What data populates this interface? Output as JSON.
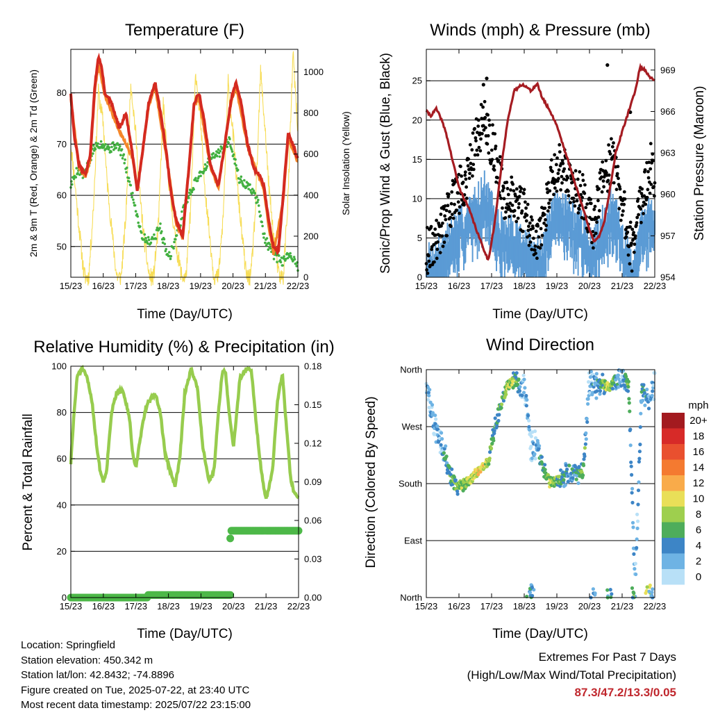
{
  "colors": {
    "temp_2m": "#d42a20",
    "temp_9m": "#f5872a",
    "dewpoint": "#42b040",
    "solar": "#f7dd58",
    "wind": "#5b9bd5",
    "gust": "#000000",
    "pressure": "#a51c22",
    "rh": "#97cc4e",
    "precip": "#4db848",
    "extremes": "#c0272d"
  },
  "speed_scale": {
    "title": "mph",
    "labels": [
      "20+",
      "18",
      "16",
      "14",
      "12",
      "10",
      "8",
      "6",
      "4",
      "2",
      "0"
    ],
    "colors": [
      "#a31a1f",
      "#d72a28",
      "#e9502f",
      "#f47a30",
      "#f9ab4a",
      "#e9df58",
      "#9ecf4e",
      "#4ead5b",
      "#3d85c6",
      "#6eb3e4",
      "#b8e0f7"
    ]
  },
  "footer": {
    "location": "Location: Springfield",
    "elevation": "Station elevation: 450.342 m",
    "latlon": "Station lat/lon: 42.8432; -74.8896",
    "created": "Figure created on Tue, 2025-07-22, at 23:40 UTC",
    "recent": "Most recent data timestamp: 2025/07/22 23:15:00"
  },
  "extremes": {
    "title": "Extremes For Past 7 Days",
    "subtitle": "(High/Low/Max Wind/Total Precipitation)",
    "values": "87.3/47.2/13.3/0.05"
  },
  "chart_data": [
    {
      "type": "line",
      "title": "Temperature (F)",
      "xlabel": "Time (Day/UTC)",
      "ylabel": "2m & 9m T (Red, Orange) & 2m Td (Green)",
      "ylabel_right": "Solar Insolation (Yellow)",
      "x_ticks": [
        "15/23",
        "16/23",
        "17/23",
        "18/23",
        "19/23",
        "20/23",
        "21/23",
        "22/23"
      ],
      "xlim": [
        0,
        7
      ],
      "ylim": [
        44,
        88.5
      ],
      "y_ticks": [
        50,
        60,
        70,
        80
      ],
      "ylim_right": [
        0,
        1110
      ],
      "y_ticks_right": [
        0,
        200,
        400,
        600,
        800,
        1000
      ],
      "grid": "y",
      "series": [
        {
          "key": "t2m",
          "axis": "left",
          "style": "thick",
          "x": [
            0,
            0.1,
            0.25,
            0.45,
            0.6,
            0.75,
            0.85,
            0.95,
            1.05,
            1.25,
            1.5,
            1.7,
            1.9,
            2.05,
            2.2,
            2.4,
            2.6,
            2.8,
            2.95,
            3.1,
            3.25,
            3.45,
            3.65,
            3.8,
            3.95,
            4.1,
            4.3,
            4.55,
            4.75,
            4.95,
            5.1,
            5.25,
            5.45,
            5.65,
            5.8,
            5.95,
            6.1,
            6.25,
            6.4,
            6.55,
            6.7,
            6.85,
            7
          ],
          "y": [
            80,
            72,
            66,
            64,
            68,
            82,
            87,
            85,
            80,
            78,
            73,
            76,
            68,
            61,
            68,
            78,
            82,
            75,
            68,
            60,
            55,
            52,
            66,
            78,
            80,
            75,
            66,
            62,
            70,
            79,
            82,
            78,
            70,
            65,
            64,
            62,
            55,
            50,
            49,
            60,
            72,
            70,
            67
          ]
        },
        {
          "key": "t9m",
          "axis": "left",
          "style": "thin",
          "x": [
            0,
            0.25,
            0.45,
            0.6,
            0.75,
            0.85,
            1.05,
            1.5,
            1.9,
            2.05,
            2.4,
            2.6,
            2.95,
            3.25,
            3.45,
            3.8,
            3.95,
            4.3,
            4.55,
            4.95,
            5.1,
            5.45,
            5.8,
            5.95,
            6.1,
            6.25,
            6.55,
            6.7,
            7
          ],
          "y": [
            79,
            65.5,
            63.5,
            67,
            81,
            85.5,
            79.5,
            72.5,
            67.5,
            61,
            77.5,
            81,
            67.5,
            54.5,
            51.5,
            77.5,
            79,
            65.5,
            61.5,
            78.5,
            81,
            69.5,
            63.5,
            61,
            54,
            48.5,
            59,
            71,
            66.5
          ]
        },
        {
          "key": "td",
          "axis": "left",
          "style": "dots",
          "x": [
            0,
            0.2,
            0.4,
            0.55,
            0.7,
            0.85,
            1.0,
            1.2,
            1.4,
            1.6,
            1.75,
            1.9,
            2.05,
            2.2,
            2.4,
            2.6,
            2.75,
            2.9,
            3.05,
            3.2,
            3.35,
            3.5,
            3.65,
            3.8,
            3.95,
            4.1,
            4.3,
            4.5,
            4.7,
            4.9,
            5.05,
            5.2,
            5.4,
            5.6,
            5.8,
            5.95,
            6.1,
            6.3,
            6.5,
            6.7,
            6.85,
            7
          ],
          "y": [
            62,
            65,
            64,
            66,
            69,
            70,
            70,
            69,
            70,
            68,
            64,
            60,
            56,
            52,
            51,
            52,
            54,
            50,
            48,
            51,
            54,
            58,
            60,
            62,
            64,
            65,
            67,
            68,
            69,
            71,
            67,
            63,
            62,
            61,
            58,
            52,
            50,
            48,
            47,
            48,
            48,
            46
          ]
        },
        {
          "key": "solar",
          "axis": "right",
          "style": "solar",
          "x": [
            0,
            0.1,
            0.25,
            0.4,
            0.45,
            0.55,
            0.7,
            0.85,
            1.0,
            1.1,
            1.25,
            1.4,
            1.45,
            1.55,
            1.7,
            1.85,
            2.0,
            2.1,
            2.25,
            2.4,
            2.45,
            2.55,
            2.7,
            2.85,
            3.0,
            3.1,
            3.25,
            3.4,
            3.45,
            3.55,
            3.7,
            3.85,
            4.0,
            4.1,
            4.25,
            4.4,
            4.45,
            4.55,
            4.7,
            4.85,
            5.0,
            5.1,
            5.25,
            5.4,
            5.45,
            5.55,
            5.7,
            5.85,
            6.0,
            6.1,
            6.25,
            6.4,
            6.45,
            6.55,
            6.7,
            6.85,
            7.0
          ],
          "y": [
            650,
            500,
            250,
            20,
            0,
            0,
            350,
            900,
            750,
            500,
            250,
            20,
            0,
            0,
            300,
            950,
            700,
            450,
            200,
            20,
            0,
            0,
            250,
            850,
            500,
            350,
            150,
            20,
            0,
            0,
            350,
            1000,
            750,
            500,
            250,
            20,
            0,
            0,
            300,
            950,
            700,
            500,
            250,
            20,
            0,
            0,
            350,
            1000,
            700,
            450,
            200,
            20,
            0,
            0,
            400,
            1090,
            700
          ]
        }
      ]
    },
    {
      "type": "scatter",
      "title": "Winds (mph) & Pressure (mb)",
      "xlabel": "Time (Day/UTC)",
      "ylabel": "Sonic/Prop Wind & Gust (Blue, Black)",
      "ylabel_right": "Station Pressure (Maroon)",
      "x_ticks": [
        "15/23",
        "16/23",
        "17/23",
        "18/23",
        "19/23",
        "20/23",
        "21/23",
        "22/23"
      ],
      "xlim": [
        0,
        7
      ],
      "ylim": [
        0,
        29
      ],
      "y_ticks": [
        0,
        5,
        10,
        15,
        20,
        25
      ],
      "ylim_right": [
        954,
        970.5
      ],
      "y_ticks_right": [
        954,
        957,
        960,
        963,
        966,
        969
      ],
      "grid": "y",
      "series": [
        {
          "key": "wind",
          "axis": "left",
          "style": "band",
          "x": [
            0,
            0.3,
            0.6,
            0.9,
            1.2,
            1.5,
            1.8,
            2.1,
            2.4,
            2.7,
            3.0,
            3.3,
            3.6,
            3.9,
            4.2,
            4.5,
            4.8,
            5.1,
            5.4,
            5.7,
            6.0,
            6.3,
            6.6,
            6.9,
            7
          ],
          "y": [
            1.5,
            2.5,
            4,
            6,
            7,
            9,
            11,
            7,
            5,
            5.5,
            4,
            2,
            4,
            8,
            9,
            7,
            6,
            3,
            7,
            9,
            5,
            1,
            6,
            8,
            6
          ]
        },
        {
          "key": "gust",
          "axis": "left",
          "style": "dots",
          "x": [
            0,
            0.3,
            0.6,
            0.9,
            1.2,
            1.5,
            1.8,
            2.1,
            2.4,
            2.7,
            3.0,
            3.3,
            3.6,
            3.9,
            4.2,
            4.5,
            4.8,
            5.1,
            5.4,
            5.7,
            6.0,
            6.3,
            6.6,
            6.9,
            7
          ],
          "y": [
            3,
            4.5,
            7,
            10,
            12,
            17,
            20,
            15,
            10,
            10,
            8,
            4,
            7,
            13,
            14,
            11,
            10,
            6,
            12,
            15,
            9,
            3,
            10,
            14,
            10
          ]
        },
        {
          "key": "gust_extremes",
          "axis": "left",
          "style": "dots",
          "x": [
            1.75,
            1.85,
            5.55,
            6.25
          ],
          "y": [
            24.5,
            25.3,
            27,
            21
          ]
        },
        {
          "key": "pressure",
          "axis": "right",
          "style": "thick",
          "x": [
            0,
            0.15,
            0.3,
            0.45,
            0.6,
            0.8,
            1.0,
            1.3,
            1.6,
            1.9,
            2.1,
            2.3,
            2.5,
            2.7,
            2.95,
            3.2,
            3.4,
            3.55,
            3.8,
            4.0,
            4.2,
            4.4,
            4.6,
            4.8,
            5.0,
            5.15,
            5.3,
            5.45,
            5.6,
            5.8,
            6.0,
            6.2,
            6.4,
            6.55,
            6.7,
            6.85,
            7
          ],
          "y": [
            966,
            965.7,
            966.2,
            965.5,
            964.5,
            962.5,
            960.5,
            959,
            957,
            955.2,
            958,
            962,
            965.5,
            967.5,
            968,
            967.5,
            968,
            967,
            966,
            965,
            963.5,
            962,
            960.5,
            959,
            957.5,
            956.5,
            957,
            958,
            960,
            963,
            964.5,
            966,
            967.5,
            969.2,
            969,
            968.5,
            968.3
          ]
        }
      ]
    },
    {
      "type": "line",
      "title": "Relative Humidity (%) & Precipitation (in)",
      "xlabel": "Time (Day/UTC)",
      "ylabel": "Percent & Total Rainfall",
      "x_ticks": [
        "15/23",
        "16/23",
        "17/23",
        "18/23",
        "19/23",
        "20/23",
        "21/23",
        "22/23"
      ],
      "xlim": [
        0,
        7
      ],
      "ylim": [
        0,
        100
      ],
      "y_ticks": [
        0,
        20,
        40,
        60,
        80,
        100
      ],
      "ylim_right": [
        0,
        0.18
      ],
      "y_ticks_right": [
        "0.00",
        "0.03",
        "0.06",
        "0.09",
        "0.12",
        "0.15",
        "0.18"
      ],
      "grid": "y",
      "series": [
        {
          "key": "rh",
          "axis": "left",
          "style": "thick",
          "x": [
            0,
            0.1,
            0.2,
            0.35,
            0.5,
            0.65,
            0.8,
            0.9,
            1.0,
            1.1,
            1.25,
            1.4,
            1.6,
            1.8,
            1.9,
            2.0,
            2.15,
            2.3,
            2.4,
            2.6,
            2.75,
            2.9,
            3.05,
            3.2,
            3.35,
            3.5,
            3.7,
            3.9,
            4.05,
            4.25,
            4.4,
            4.55,
            4.65,
            4.75,
            4.85,
            5.0,
            5.2,
            5.4,
            5.55,
            5.7,
            5.85,
            6.0,
            6.2,
            6.35,
            6.5,
            6.65,
            6.75,
            6.85,
            7
          ],
          "y": [
            58,
            80,
            96,
            99,
            95,
            85,
            65,
            55,
            50,
            55,
            80,
            88,
            90,
            78,
            62,
            56,
            70,
            82,
            85,
            88,
            80,
            62,
            55,
            48,
            60,
            88,
            99,
            90,
            66,
            50,
            55,
            82,
            97,
            98,
            82,
            65,
            95,
            99,
            98,
            75,
            55,
            42,
            55,
            85,
            97,
            70,
            52,
            46,
            43
          ]
        },
        {
          "key": "precip",
          "axis": "right",
          "style": "dots",
          "x": [
            0,
            0.5,
            1.0,
            1.5,
            2.0,
            2.3,
            2.35,
            2.6,
            3.0,
            3.4,
            3.8,
            4.2,
            4.55,
            4.9,
            4.92,
            5.2,
            5.6,
            6.0,
            6.4,
            6.8,
            7
          ],
          "y": [
            0,
            0,
            0,
            0,
            0,
            0,
            0.002,
            0.002,
            0.002,
            0.002,
            0.002,
            0.002,
            0.002,
            0.002,
            0.052,
            0.052,
            0.052,
            0.052,
            0.052,
            0.052,
            0.052
          ]
        },
        {
          "key": "precip_marker",
          "axis": "right",
          "style": "dots",
          "x": [
            4.9
          ],
          "y": [
            0.046
          ]
        }
      ]
    },
    {
      "type": "scatter",
      "title": "Wind Direction",
      "xlabel": "Time (Day/UTC)",
      "ylabel": "Direction (Colored By Speed)",
      "x_ticks": [
        "15/23",
        "16/23",
        "17/23",
        "18/23",
        "19/23",
        "20/23",
        "21/23",
        "22/23"
      ],
      "xlim": [
        0,
        7
      ],
      "ylim": [
        0,
        360
      ],
      "y_tick_values": [
        0,
        90,
        180,
        270,
        360
      ],
      "y_ticks": [
        "North",
        "East",
        "South",
        "West",
        "North"
      ],
      "grid": "y",
      "series": [
        {
          "key": "direction",
          "style": "dots",
          "x": [
            0,
            0.3,
            0.55,
            0.7,
            0.9,
            1.1,
            1.3,
            1.5,
            1.7,
            1.9,
            2.1,
            2.3,
            2.5,
            2.7,
            2.9,
            3.0,
            3.2,
            3.4,
            3.6,
            3.8,
            4.0,
            4.2,
            4.4,
            4.6,
            4.8,
            5.0,
            5.2,
            5.4,
            5.6,
            5.8,
            6.0,
            6.2,
            6.4,
            6.6,
            6.8,
            7
          ],
          "y": [
            340,
            260,
            230,
            200,
            175,
            178,
            185,
            195,
            205,
            215,
            270,
            310,
            335,
            345,
            330,
            340,
            240,
            235,
            200,
            180,
            185,
            190,
            200,
            195,
            195,
            340,
            335,
            340,
            330,
            345,
            350,
            335,
            15,
            330,
            310,
            340
          ],
          "speed": [
            2,
            3,
            4,
            6,
            7,
            8,
            9,
            10,
            12,
            8,
            6,
            7,
            9,
            8,
            4,
            3,
            2,
            3,
            6,
            9,
            8,
            5,
            4,
            5,
            7,
            3,
            4,
            6,
            10,
            5,
            4,
            8,
            2,
            5,
            4,
            3
          ]
        },
        {
          "key": "north_hits",
          "style": "dots",
          "x": [
            3.15,
            3.25,
            5.1,
            5.6,
            6.3,
            6.8,
            6.85
          ],
          "y": [
            5,
            12,
            4,
            3,
            6,
            10,
            4
          ],
          "speed": [
            6,
            4,
            3,
            5,
            7,
            9,
            4
          ]
        }
      ]
    }
  ]
}
